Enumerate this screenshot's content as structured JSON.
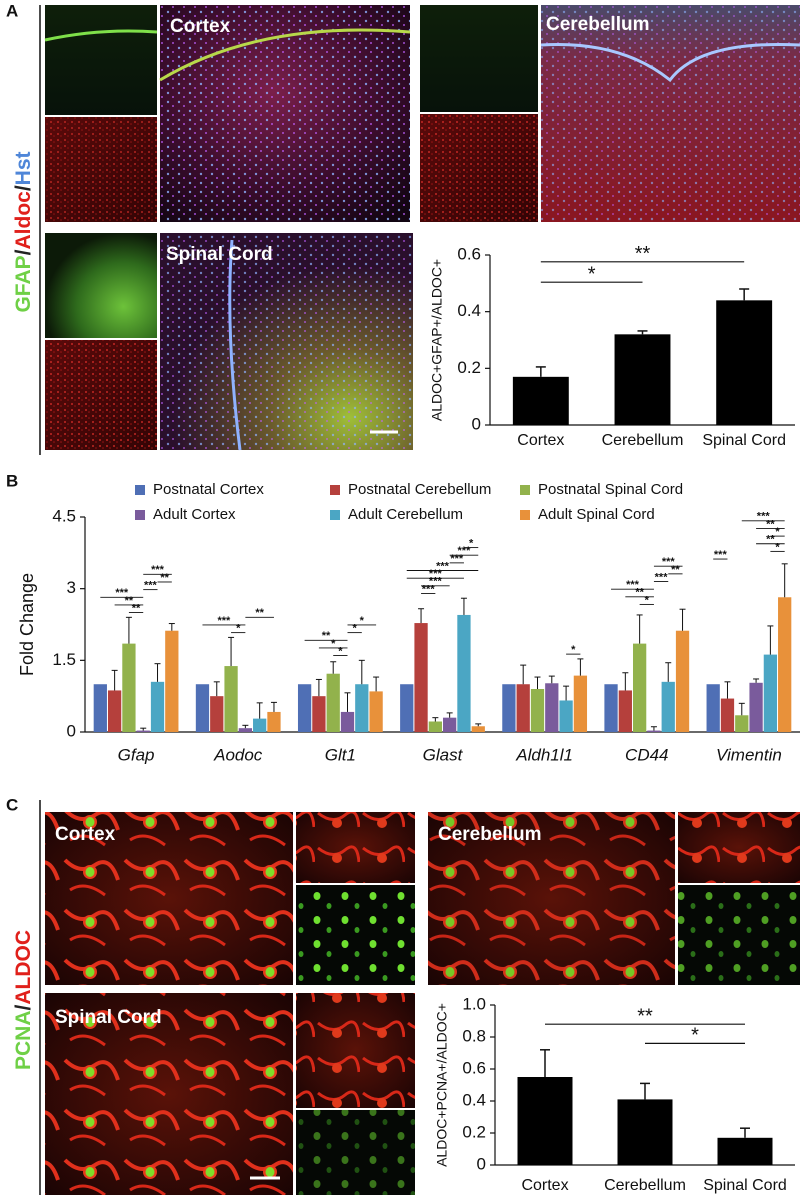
{
  "panels": {
    "A": {
      "label": "A",
      "stain_label": [
        {
          "text": "GFAP",
          "color": "#6fd046"
        },
        {
          "text": "/",
          "color": "#222222"
        },
        {
          "text": "Aldoc",
          "color": "#e0201b"
        },
        {
          "text": "/",
          "color": "#222222"
        },
        {
          "text": "Hst",
          "color": "#4f86d8"
        }
      ],
      "image_labels": [
        "Cortex",
        "Cerebellum",
        "Spinal Cord"
      ]
    },
    "B": {
      "label": "B"
    },
    "C": {
      "label": "C",
      "stain_label": [
        {
          "text": "PCNA",
          "color": "#6fd046"
        },
        {
          "text": "/",
          "color": "#222222"
        },
        {
          "text": "ALDOC",
          "color": "#e0201b"
        }
      ],
      "image_labels": [
        "Cortex",
        "Cerebellum",
        "Spinal Cord"
      ]
    }
  },
  "chart_data": [
    {
      "type": "bar",
      "ylabel": "ALDOC+GFAP+/ALDOC+",
      "categories": [
        "Cortex",
        "Cerebellum",
        "Spinal Cord"
      ],
      "values": [
        0.17,
        0.32,
        0.44
      ],
      "errors": [
        0.035,
        0.012,
        0.04
      ],
      "color": "#000000",
      "ylim": [
        0,
        0.6
      ],
      "yticks": [
        0,
        0.2,
        0.4,
        0.6
      ],
      "significance": [
        {
          "text": "*",
          "between": [
            0,
            1
          ]
        },
        {
          "text": "**",
          "between": [
            0,
            2
          ]
        }
      ]
    },
    {
      "type": "grouped_bar",
      "ylabel": "Fold Change",
      "categories": [
        "Gfap",
        "Aodoc",
        "Glt1",
        "Glast",
        "Aldh1l1",
        "CD44",
        "Vimentin"
      ],
      "series": [
        {
          "name": "Postnatal Cortex",
          "color": "#4f6fb5",
          "values": [
            1,
            1,
            1,
            1,
            1,
            1,
            1
          ]
        },
        {
          "name": "Postnatal Cerebellum",
          "color": "#b5403c",
          "values": [
            0.87,
            0.75,
            0.75,
            2.28,
            1.0,
            0.87,
            0.7
          ],
          "errors": [
            0.42,
            0.3,
            0.35,
            0.3,
            0.4,
            0.37,
            0.35
          ]
        },
        {
          "name": "Postnatal Spinal Cord",
          "color": "#92b24c",
          "values": [
            1.85,
            1.38,
            1.22,
            0.22,
            0.9,
            1.85,
            0.35
          ],
          "errors": [
            0.55,
            0.6,
            0.25,
            0.08,
            0.25,
            0.6,
            0.25
          ]
        },
        {
          "name": "Adult Cortex",
          "color": "#7a5b9c",
          "values": [
            0.03,
            0.08,
            0.42,
            0.3,
            1.02,
            0.03,
            1.03
          ],
          "errors": [
            0.05,
            0.06,
            0.4,
            0.1,
            0.15,
            0.08,
            0.08
          ]
        },
        {
          "name": "Adult Cerebellum",
          "color": "#4ba6c4",
          "values": [
            1.05,
            0.28,
            1.0,
            2.45,
            0.66,
            1.05,
            1.62
          ],
          "errors": [
            0.38,
            0.33,
            0.5,
            0.35,
            0.3,
            0.4,
            0.6
          ]
        },
        {
          "name": "Adult Spinal Cord",
          "color": "#e8913a",
          "values": [
            2.12,
            0.42,
            0.85,
            0.12,
            1.18,
            2.12,
            2.82
          ],
          "errors": [
            0.15,
            0.2,
            0.3,
            0.05,
            0.35,
            0.45,
            0.7
          ]
        }
      ],
      "ylim": [
        0,
        4.5
      ],
      "yticks": [
        0,
        1.5,
        3,
        4.5
      ],
      "significance": [
        [
          {
            "text": "**",
            "series": [
              2,
              3
            ]
          },
          {
            "text": "**",
            "series": [
              1,
              3
            ]
          },
          {
            "text": "***",
            "series": [
              0,
              3
            ]
          },
          {
            "text": "***",
            "series": [
              3,
              4
            ]
          },
          {
            "text": "**",
            "series": [
              4,
              5
            ]
          },
          {
            "text": "***",
            "series": [
              3,
              5
            ]
          }
        ],
        [
          {
            "text": "*",
            "series": [
              2,
              3
            ]
          },
          {
            "text": "***",
            "series": [
              0,
              3
            ]
          },
          {
            "text": "**",
            "series": [
              3,
              5
            ]
          }
        ],
        [
          {
            "text": "*",
            "series": [
              2,
              3
            ]
          },
          {
            "text": "*",
            "series": [
              1,
              3
            ]
          },
          {
            "text": "**",
            "series": [
              0,
              3
            ]
          },
          {
            "text": "*",
            "series": [
              3,
              4
            ]
          },
          {
            "text": "*",
            "series": [
              3,
              5
            ]
          }
        ],
        [
          {
            "text": "***",
            "series": [
              1,
              2
            ]
          },
          {
            "text": "***",
            "series": [
              1,
              3
            ]
          },
          {
            "text": "***",
            "series": [
              0,
              4
            ]
          },
          {
            "text": "***",
            "series": [
              0,
              5
            ]
          },
          {
            "text": "***",
            "series": [
              3,
              4
            ]
          },
          {
            "text": "***",
            "series": [
              3,
              5
            ]
          },
          {
            "text": "*",
            "series": [
              4,
              5
            ]
          }
        ],
        [
          {
            "text": "*",
            "series": [
              4,
              5
            ]
          }
        ],
        [
          {
            "text": "*",
            "series": [
              2,
              3
            ]
          },
          {
            "text": "**",
            "series": [
              1,
              3
            ]
          },
          {
            "text": "***",
            "series": [
              0,
              3
            ]
          },
          {
            "text": "***",
            "series": [
              3,
              4
            ]
          },
          {
            "text": "**",
            "series": [
              4,
              5
            ]
          },
          {
            "text": "***",
            "series": [
              3,
              5
            ]
          }
        ],
        [
          {
            "text": "***",
            "series": [
              0,
              1
            ]
          },
          {
            "text": "*",
            "series": [
              4,
              5
            ]
          },
          {
            "text": "**",
            "series": [
              3,
              5
            ]
          },
          {
            "text": "*",
            "series": [
              4,
              5
            ]
          },
          {
            "text": "**",
            "series": [
              3,
              5
            ]
          },
          {
            "text": "***",
            "series": [
              2,
              5
            ]
          }
        ]
      ]
    },
    {
      "type": "bar",
      "ylabel": "ALDOC+PCNA+/ALDOC+",
      "categories": [
        "Cortex",
        "Cerebellum",
        "Spinal Cord"
      ],
      "values": [
        0.55,
        0.41,
        0.17
      ],
      "errors": [
        0.17,
        0.1,
        0.06
      ],
      "color": "#000000",
      "ylim": [
        0,
        1
      ],
      "yticks": [
        0,
        0.2,
        0.4,
        0.6,
        0.8,
        {
          "value": 1,
          "label": "1.0"
        }
      ],
      "significance": [
        {
          "text": "*",
          "between": [
            1,
            2
          ]
        },
        {
          "text": "**",
          "between": [
            0,
            2
          ]
        }
      ]
    }
  ]
}
